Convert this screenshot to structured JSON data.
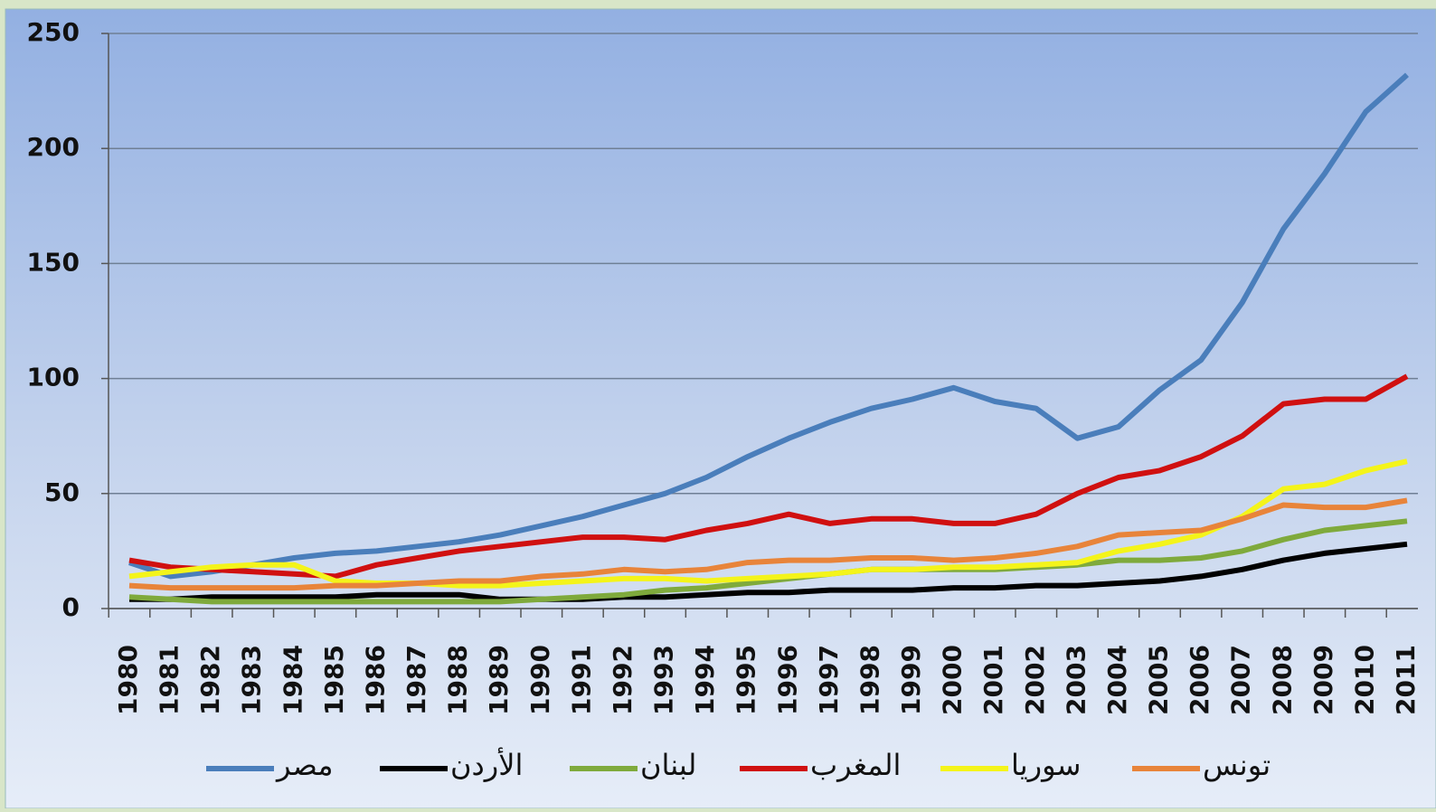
{
  "chart_data": {
    "type": "line",
    "categories": [
      "1980",
      "1981",
      "1982",
      "1983",
      "1984",
      "1985",
      "1986",
      "1987",
      "1988",
      "1989",
      "1990",
      "1991",
      "1992",
      "1993",
      "1994",
      "1995",
      "1996",
      "1997",
      "1998",
      "1999",
      "2000",
      "2001",
      "2002",
      "2003",
      "2004",
      "2005",
      "2006",
      "2007",
      "2008",
      "2009",
      "2010",
      "2011"
    ],
    "series": [
      {
        "name": "مصر",
        "color": "#4a7ebb",
        "values": [
          20,
          14,
          16,
          19,
          22,
          24,
          25,
          27,
          29,
          32,
          36,
          40,
          45,
          50,
          57,
          66,
          74,
          81,
          87,
          91,
          96,
          90,
          87,
          74,
          79,
          95,
          108,
          133,
          165,
          189,
          216,
          232
        ]
      },
      {
        "name": "الأردن",
        "color": "#000000",
        "values": [
          4,
          4,
          5,
          5,
          5,
          5,
          6,
          6,
          6,
          4,
          4,
          4,
          5,
          5,
          6,
          7,
          7,
          8,
          8,
          8,
          9,
          9,
          10,
          10,
          11,
          12,
          14,
          17,
          21,
          24,
          26,
          28
        ]
      },
      {
        "name": "لبنان",
        "color": "#7faa3c",
        "values": [
          5,
          4,
          3,
          3,
          3,
          3,
          3,
          3,
          3,
          3,
          4,
          5,
          6,
          8,
          9,
          11,
          13,
          15,
          17,
          17,
          17,
          17,
          18,
          19,
          21,
          21,
          22,
          25,
          30,
          34,
          36,
          38
        ]
      },
      {
        "name": "المغرب",
        "color": "#d01010",
        "values": [
          21,
          18,
          17,
          16,
          15,
          14,
          19,
          22,
          25,
          27,
          29,
          31,
          31,
          30,
          34,
          37,
          41,
          37,
          39,
          39,
          37,
          37,
          41,
          50,
          57,
          60,
          66,
          75,
          89,
          91,
          91,
          101
        ]
      },
      {
        "name": "سوريا",
        "color": "#f4f41a",
        "values": [
          14,
          16,
          18,
          19,
          19,
          12,
          11,
          11,
          10,
          10,
          11,
          12,
          13,
          13,
          12,
          13,
          14,
          15,
          17,
          17,
          18,
          18,
          19,
          20,
          25,
          28,
          32,
          40,
          52,
          54,
          60,
          64
        ]
      },
      {
        "name": "تونس",
        "color": "#e8843a",
        "values": [
          10,
          9,
          9,
          9,
          9,
          10,
          10,
          11,
          12,
          12,
          14,
          15,
          17,
          16,
          17,
          20,
          21,
          21,
          22,
          22,
          21,
          22,
          24,
          27,
          32,
          33,
          34,
          39,
          45,
          44,
          44,
          47
        ]
      }
    ],
    "ylim": [
      0,
      250
    ],
    "yticks": [
      0,
      50,
      100,
      150,
      200,
      250
    ],
    "grid": true
  }
}
